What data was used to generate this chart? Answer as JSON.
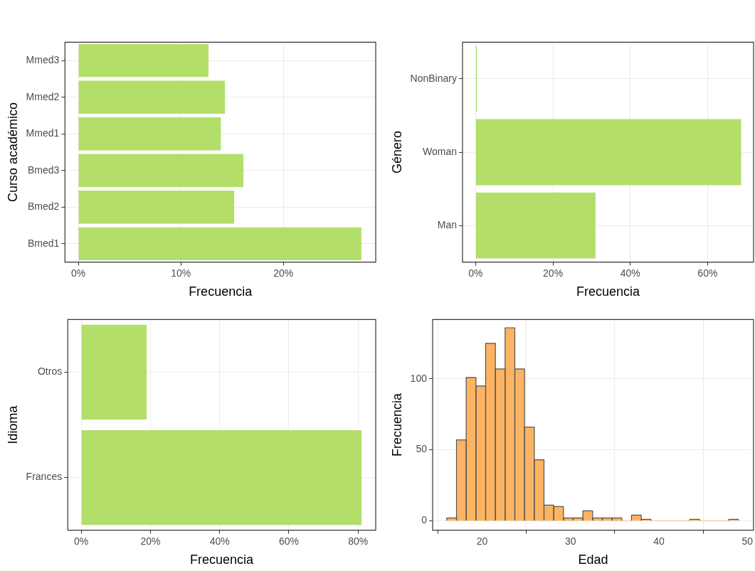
{
  "chart_data": [
    {
      "type": "bar",
      "orientation": "horizontal",
      "categories": [
        "Mmed3",
        "Mmed2",
        "Mmed1",
        "Bmed3",
        "Bmed2",
        "Bmed1"
      ],
      "values": [
        12.7,
        14.3,
        13.9,
        16.1,
        15.2,
        27.6
      ],
      "color": "#b3de69",
      "xlim": [
        -1.3,
        29
      ],
      "xticks": [
        {
          "value": 0,
          "label": "0%"
        },
        {
          "value": 10,
          "label": "10%"
        },
        {
          "value": 20,
          "label": "20%"
        }
      ],
      "xlabel": "Frecuencia",
      "ylabel": "Curso académico",
      "grid": true
    },
    {
      "type": "bar",
      "orientation": "horizontal",
      "categories": [
        "NonBinary",
        "Woman",
        "Man"
      ],
      "values": [
        0.3,
        68.7,
        31.0
      ],
      "color": "#b3de69",
      "xlim": [
        -3.4,
        71.9
      ],
      "xticks": [
        {
          "value": 0,
          "label": "0%"
        },
        {
          "value": 20,
          "label": "20%"
        },
        {
          "value": 40,
          "label": "40%"
        },
        {
          "value": 60,
          "label": "60%"
        }
      ],
      "xlabel": "Frecuencia",
      "ylabel": "Género",
      "grid": true
    },
    {
      "type": "bar",
      "orientation": "horizontal",
      "categories": [
        "Otros",
        "Frances"
      ],
      "values": [
        18.9,
        81.0
      ],
      "color": "#b3de69",
      "xlim": [
        -3.9,
        85.1
      ],
      "xticks": [
        {
          "value": 0,
          "label": "0%"
        },
        {
          "value": 20,
          "label": "20%"
        },
        {
          "value": 40,
          "label": "40%"
        },
        {
          "value": 60,
          "label": "60%"
        },
        {
          "value": 80,
          "label": "80%"
        }
      ],
      "xlabel": "Frecuencia",
      "ylabel": "Idioma",
      "grid": true
    },
    {
      "type": "histogram",
      "bins": [
        16,
        17.1,
        18.2,
        19.3,
        20.4,
        21.5,
        22.6,
        23.7,
        24.8,
        25.9,
        27,
        28.1,
        29.2,
        30.3,
        31.4,
        32.5,
        33.6,
        34.7,
        35.8,
        36.9,
        38,
        39.1,
        40.2,
        41.3,
        42.4,
        43.5,
        44.6,
        45.7,
        46.8,
        47.9,
        49
      ],
      "values": [
        2,
        57,
        101,
        95,
        125,
        107,
        136,
        107,
        66,
        43,
        11,
        10,
        2,
        2,
        7,
        2,
        2,
        2,
        0,
        4,
        1,
        0,
        0,
        0,
        0,
        1,
        0,
        0,
        0,
        1
      ],
      "color": "#fdb462",
      "xlim": [
        14.4,
        50.7
      ],
      "xticks": [
        20,
        30,
        40,
        50
      ],
      "ylim": [
        -6.6,
        141.8
      ],
      "yticks": [
        0,
        50,
        100
      ],
      "xlabel": "Edad",
      "ylabel": "Frecuencia",
      "grid": true
    }
  ]
}
